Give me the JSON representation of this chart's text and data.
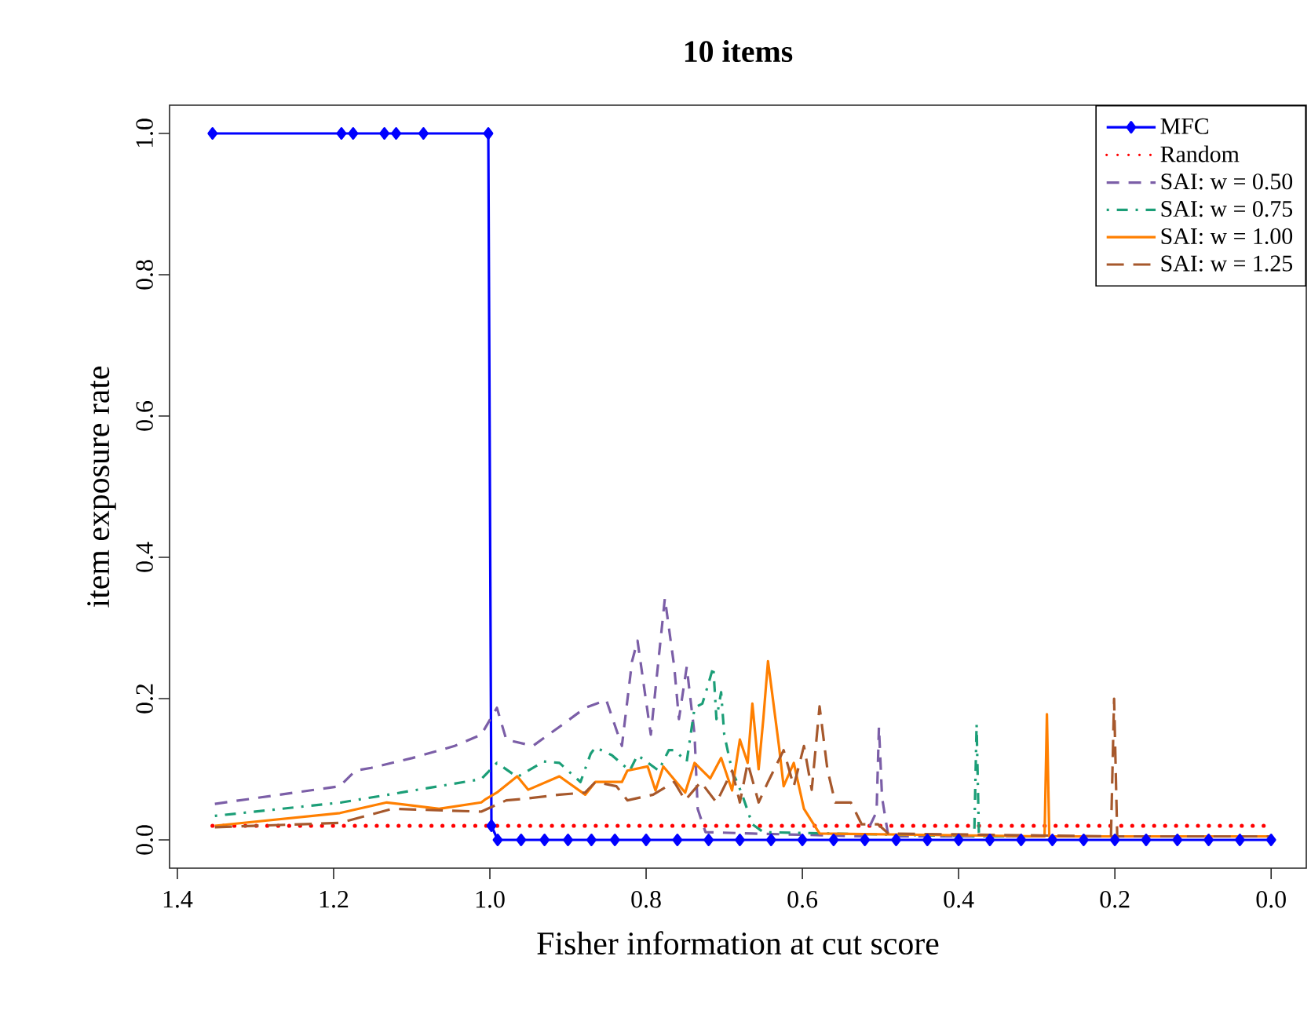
{
  "chart_data": {
    "type": "line",
    "title": "10 items",
    "xlabel": "Fisher information at cut score",
    "ylabel": "item exposure rate",
    "xlim": [
      1.41,
      -0.045
    ],
    "ylim": [
      -0.04,
      1.04
    ],
    "xticks": [
      {
        "value": 1.4,
        "label": "1.4"
      },
      {
        "value": 1.2,
        "label": "1.2"
      },
      {
        "value": 1.0,
        "label": "1.0"
      },
      {
        "value": 0.8,
        "label": "0.8"
      },
      {
        "value": 0.6,
        "label": "0.6"
      },
      {
        "value": 0.4,
        "label": "0.4"
      },
      {
        "value": 0.2,
        "label": "0.2"
      },
      {
        "value": 0.0,
        "label": "0.0"
      }
    ],
    "yticks": [
      {
        "value": 0.0,
        "label": "0.0"
      },
      {
        "value": 0.2,
        "label": "0.2"
      },
      {
        "value": 0.4,
        "label": "0.4"
      },
      {
        "value": 0.6,
        "label": "0.6"
      },
      {
        "value": 0.8,
        "label": "0.8"
      },
      {
        "value": 1.0,
        "label": "1.0"
      }
    ],
    "legend": "top right",
    "grid": false,
    "series": [
      {
        "name": "MFC",
        "color": "#0000ff",
        "line_style": "solid",
        "marker": "diamond",
        "x": [
          1.355,
          1.19,
          1.175,
          1.135,
          1.12,
          1.085,
          1.002,
          0.998,
          0.99,
          0.96,
          0.93,
          0.9,
          0.87,
          0.84,
          0.8,
          0.76,
          0.72,
          0.68,
          0.64,
          0.6,
          0.56,
          0.52,
          0.48,
          0.44,
          0.4,
          0.36,
          0.32,
          0.28,
          0.24,
          0.2,
          0.16,
          0.12,
          0.08,
          0.04,
          0.0
        ],
        "values": [
          1,
          1,
          1,
          1,
          1,
          1,
          1,
          0.02,
          0,
          0,
          0,
          0,
          0,
          0,
          0,
          0,
          0,
          0,
          0,
          0,
          0,
          0,
          0,
          0,
          0,
          0,
          0,
          0,
          0,
          0,
          0,
          0,
          0,
          0,
          0
        ]
      },
      {
        "name": "Random",
        "color": "#ff0000",
        "line_style": "dotted",
        "x": [
          1.355,
          0.0
        ],
        "values": [
          0.02,
          0.02
        ]
      },
      {
        "name": "SAI: w = 0.50",
        "color": "#7b5ea7",
        "line_style": "dashed",
        "x": [
          1.352,
          1.192,
          1.172,
          1.152,
          1.099,
          1.045,
          1.011,
          0.991,
          0.979,
          0.945,
          0.911,
          0.878,
          0.851,
          0.831,
          0.818,
          0.811,
          0.794,
          0.776,
          0.764,
          0.758,
          0.748,
          0.738,
          0.734,
          0.724,
          0.664,
          0.52,
          0.505,
          0.502,
          0.498,
          0.49,
          0.0
        ],
        "values": [
          0.051,
          0.076,
          0.098,
          0.102,
          0.116,
          0.133,
          0.149,
          0.187,
          0.142,
          0.133,
          0.16,
          0.187,
          0.198,
          0.133,
          0.253,
          0.282,
          0.149,
          0.342,
          0.245,
          0.171,
          0.245,
          0.149,
          0.044,
          0.011,
          0.009,
          0.005,
          0.04,
          0.16,
          0.06,
          0.005,
          0.005
        ]
      },
      {
        "name": "SAI: w = 0.75",
        "color": "#1b9e77",
        "line_style": "dashdot",
        "x": [
          1.352,
          1.19,
          1.011,
          0.991,
          0.965,
          0.931,
          0.911,
          0.884,
          0.871,
          0.865,
          0.844,
          0.821,
          0.811,
          0.784,
          0.771,
          0.764,
          0.748,
          0.738,
          0.728,
          0.72,
          0.714,
          0.71,
          0.704,
          0.7,
          0.69,
          0.678,
          0.664,
          0.65,
          0.38,
          0.377,
          0.374,
          0.0
        ],
        "values": [
          0.034,
          0.053,
          0.086,
          0.109,
          0.089,
          0.111,
          0.109,
          0.082,
          0.122,
          0.131,
          0.12,
          0.098,
          0.12,
          0.098,
          0.127,
          0.127,
          0.111,
          0.187,
          0.193,
          0.222,
          0.245,
          0.171,
          0.209,
          0.149,
          0.098,
          0.067,
          0.022,
          0.011,
          0.005,
          0.164,
          0.005,
          0.005
        ]
      },
      {
        "name": "SAI: w = 1.00",
        "color": "#ff7f00",
        "line_style": "solid",
        "x": [
          1.352,
          1.192,
          1.132,
          1.065,
          1.011,
          1.005,
          0.991,
          0.965,
          0.951,
          0.911,
          0.878,
          0.865,
          0.831,
          0.824,
          0.798,
          0.788,
          0.778,
          0.75,
          0.738,
          0.718,
          0.704,
          0.69,
          0.68,
          0.67,
          0.664,
          0.656,
          0.65,
          0.644,
          0.63,
          0.624,
          0.611,
          0.598,
          0.578,
          0.29,
          0.287,
          0.284,
          0.0
        ],
        "values": [
          0.02,
          0.038,
          0.053,
          0.044,
          0.053,
          0.058,
          0.067,
          0.09,
          0.071,
          0.09,
          0.064,
          0.082,
          0.082,
          0.098,
          0.104,
          0.07,
          0.104,
          0.067,
          0.109,
          0.087,
          0.116,
          0.07,
          0.142,
          0.109,
          0.193,
          0.1,
          0.171,
          0.253,
          0.133,
          0.076,
          0.109,
          0.044,
          0.009,
          0.005,
          0.178,
          0.005,
          0.005
        ]
      },
      {
        "name": "SAI: w = 1.25",
        "color": "#a6582c",
        "line_style": "longdash",
        "x": [
          1.352,
          1.192,
          1.125,
          1.011,
          0.979,
          0.958,
          0.911,
          0.878,
          0.865,
          0.838,
          0.824,
          0.791,
          0.764,
          0.75,
          0.73,
          0.71,
          0.69,
          0.68,
          0.67,
          0.656,
          0.644,
          0.624,
          0.611,
          0.598,
          0.588,
          0.578,
          0.568,
          0.558,
          0.538,
          0.524,
          0.503,
          0.49,
          0.205,
          0.201,
          0.197,
          0.0
        ],
        "values": [
          0.018,
          0.024,
          0.044,
          0.04,
          0.056,
          0.058,
          0.064,
          0.067,
          0.082,
          0.076,
          0.056,
          0.064,
          0.082,
          0.056,
          0.082,
          0.053,
          0.098,
          0.053,
          0.109,
          0.053,
          0.082,
          0.127,
          0.076,
          0.133,
          0.071,
          0.189,
          0.1,
          0.053,
          0.053,
          0.022,
          0.022,
          0.009,
          0.005,
          0.2,
          0.005,
          0.005
        ]
      }
    ]
  }
}
